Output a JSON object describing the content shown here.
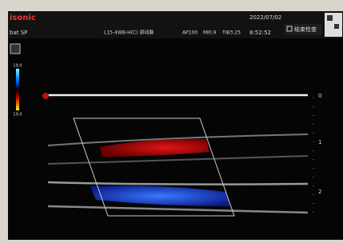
{
  "header": {
    "logo": "isonic",
    "preset": "bat SP",
    "probe": "L15-4WB-H(C) 颈动脉",
    "ap": "AP100",
    "mi": "MI0.9",
    "tib": "TIB3.25",
    "date": "2022/07/02",
    "time": "8:52:52",
    "end_button": "结束检查"
  },
  "color_scale": {
    "top": "19.0",
    "bottom": "19.0"
  },
  "depth_scale": {
    "labels": [
      "0",
      "1",
      "2"
    ]
  }
}
